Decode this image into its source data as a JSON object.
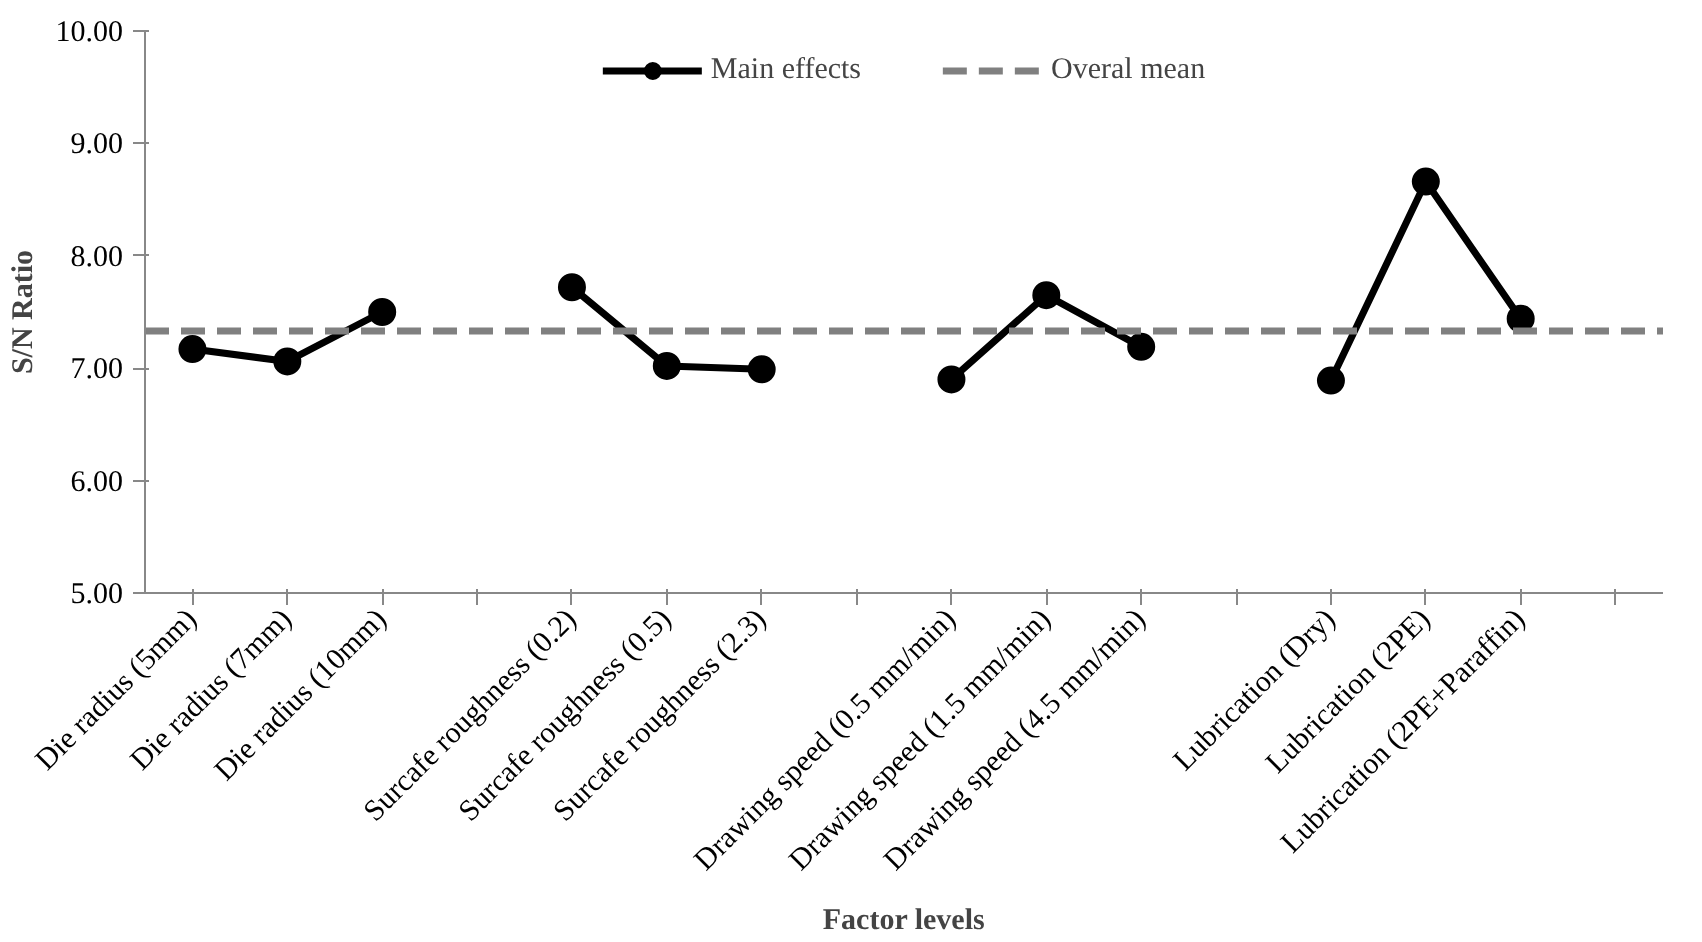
{
  "chart_data": {
    "type": "line",
    "xlabel": "Factor levels",
    "ylabel": "S/N Ratio",
    "categories": [
      "Die radius (5mm)",
      "Die radius (7mm)",
      "Die radius (10mm)",
      null,
      "Surcafe roughness (0.2)",
      "Surcafe roughness (0.5)",
      "Surcafe roughness (2.3)",
      null,
      "Drawing speed (0.5 mm/min)",
      "Drawing speed (1.5 mm/min)",
      "Drawing speed (4.5 mm/min)",
      null,
      "Lubrication (Dry)",
      "Lubrication (2PE)",
      "Lubrication (2PE+Paraffin)",
      null
    ],
    "series": [
      {
        "name": "Main effects",
        "color": "#000000",
        "values": [
          7.17,
          7.06,
          7.5,
          null,
          7.72,
          7.02,
          6.99,
          null,
          6.9,
          7.65,
          7.19,
          null,
          6.89,
          8.66,
          7.44,
          null
        ]
      }
    ],
    "ref_lines": [
      {
        "axis": "y",
        "value": 7.33,
        "label": "Overal mean",
        "color": "#808080",
        "line_style": "dashed"
      }
    ],
    "ylim": [
      5,
      10
    ],
    "yticks": [
      {
        "value": 5,
        "label": "5.00"
      },
      {
        "value": 6,
        "label": "6.00"
      },
      {
        "value": 7,
        "label": "7.00"
      },
      {
        "value": 8,
        "label": "8.00"
      },
      {
        "value": 9,
        "label": "9.00"
      },
      {
        "value": 10,
        "label": "10.00"
      }
    ],
    "grid": false,
    "legend": "top",
    "marker": "circle",
    "line_style": "solid"
  }
}
